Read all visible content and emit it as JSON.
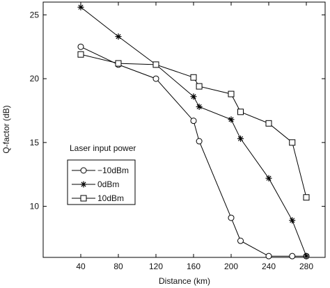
{
  "chart_data": {
    "type": "line",
    "xlabel": "Distance (km)",
    "ylabel": "Q-factor (dB)",
    "xlim": [
      0,
      300
    ],
    "ylim": [
      6,
      26
    ],
    "x_ticks": [
      40,
      80,
      120,
      160,
      200,
      240,
      280
    ],
    "y_ticks": [
      10,
      15,
      20,
      25
    ],
    "grid": false,
    "legend": {
      "title": "Laser input power",
      "placement": "middle-left"
    },
    "series": [
      {
        "name": "−10dBm",
        "marker": "circle",
        "x": [
          40,
          80,
          120,
          160,
          166,
          200,
          210,
          240,
          265,
          280
        ],
        "y": [
          22.5,
          21.1,
          20.0,
          16.7,
          15.1,
          9.1,
          7.3,
          6.1,
          6.1,
          6.1
        ]
      },
      {
        "name": "0dBm",
        "marker": "star",
        "x": [
          40,
          80,
          120,
          160,
          166,
          200,
          210,
          240,
          265,
          280
        ],
        "y": [
          25.6,
          23.3,
          21.1,
          18.6,
          17.8,
          16.8,
          15.3,
          12.2,
          8.9,
          6.1
        ]
      },
      {
        "name": "10dBm",
        "marker": "square",
        "x": [
          40,
          80,
          120,
          160,
          166,
          200,
          210,
          240,
          265,
          280
        ],
        "y": [
          21.9,
          21.2,
          21.1,
          20.1,
          19.4,
          18.8,
          17.4,
          16.5,
          15.0,
          10.7
        ]
      }
    ]
  }
}
